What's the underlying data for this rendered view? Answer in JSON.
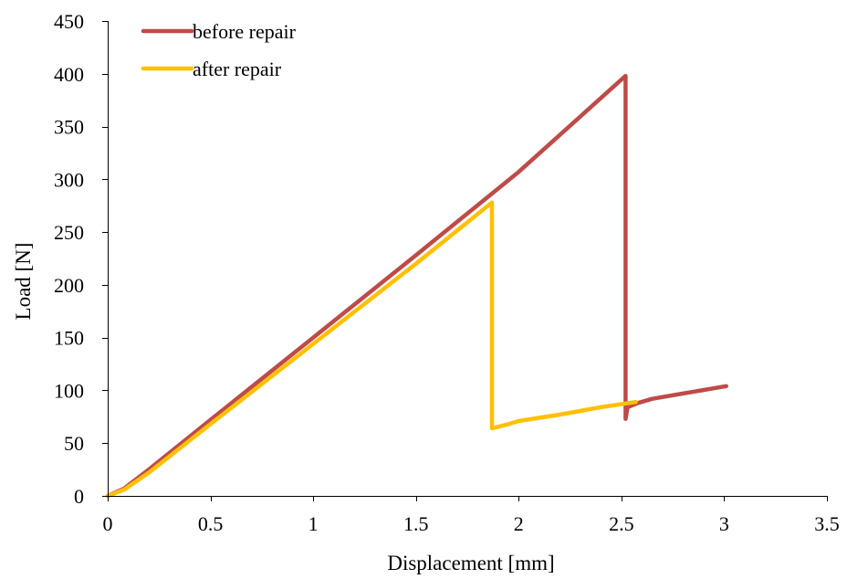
{
  "chart_data": {
    "type": "line",
    "title": "",
    "xlabel": "Displacement [mm]",
    "ylabel": "Load [N]",
    "xlim": [
      0,
      3.5
    ],
    "ylim": [
      0,
      450
    ],
    "xticks": [
      0,
      0.5,
      1,
      1.5,
      2,
      2.5,
      3,
      3.5
    ],
    "yticks": [
      0,
      50,
      100,
      150,
      200,
      250,
      300,
      350,
      400,
      450
    ],
    "xtick_labels": [
      "0",
      "0.5",
      "1",
      "1.5",
      "2",
      "2.5",
      "3",
      "3.5"
    ],
    "ytick_labels": [
      "0",
      "50",
      "100",
      "150",
      "200",
      "250",
      "300",
      "350",
      "400",
      "450"
    ],
    "grid": false,
    "legend_position": "top-left",
    "series": [
      {
        "name": "before repair",
        "color": "#be4b48",
        "points": [
          [
            0,
            0
          ],
          [
            0.08,
            7
          ],
          [
            0.2,
            25
          ],
          [
            0.5,
            72
          ],
          [
            1.0,
            150
          ],
          [
            1.5,
            228
          ],
          [
            2.0,
            307
          ],
          [
            2.52,
            398
          ],
          [
            2.52,
            73
          ],
          [
            2.53,
            84
          ],
          [
            2.58,
            88
          ],
          [
            2.65,
            92
          ],
          [
            2.8,
            97
          ],
          [
            3.01,
            104
          ]
        ]
      },
      {
        "name": "after repair",
        "color": "#ffc000",
        "points": [
          [
            0,
            0
          ],
          [
            0.08,
            6
          ],
          [
            0.2,
            22
          ],
          [
            0.5,
            68
          ],
          [
            1.0,
            144
          ],
          [
            1.5,
            220
          ],
          [
            1.87,
            278
          ],
          [
            1.87,
            64
          ],
          [
            1.95,
            68
          ],
          [
            2.0,
            71
          ],
          [
            2.2,
            77
          ],
          [
            2.4,
            84
          ],
          [
            2.57,
            89
          ]
        ]
      }
    ]
  }
}
